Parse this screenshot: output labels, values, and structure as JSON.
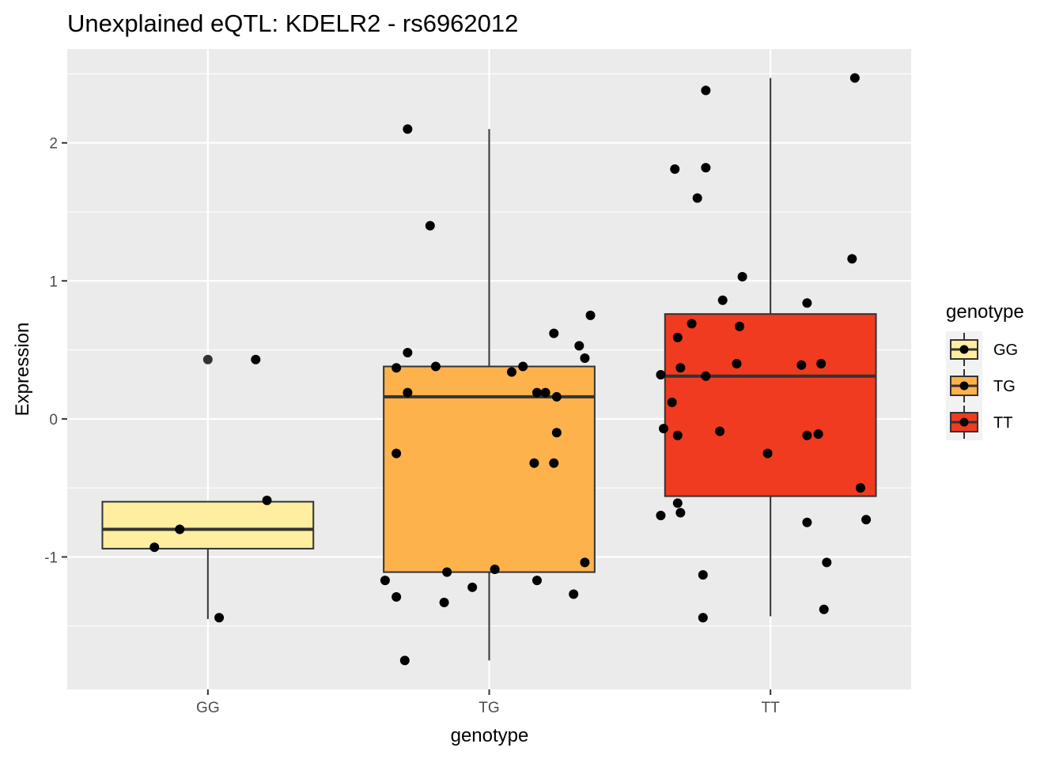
{
  "chart_data": {
    "type": "box",
    "title": "Unexplained eQTL: KDELR2 - rs6962012",
    "xlabel": "genotype",
    "ylabel": "Expression",
    "categories": [
      "GG",
      "TG",
      "TT"
    ],
    "ylim": [
      -1.96,
      2.68
    ],
    "yticks": [
      -1,
      0,
      1,
      2
    ],
    "ytick_labels": [
      "-1",
      "0",
      "1",
      "2"
    ],
    "grid": true,
    "legend": {
      "title": "genotype",
      "position": "right",
      "entries": [
        "GG",
        "TG",
        "TT"
      ]
    },
    "colors": {
      "GG": "#FFEDA0",
      "TG": "#FEB24C",
      "TT": "#F03B20",
      "panel": "#EBEBEB",
      "grid": "#FFFFFF",
      "point": "#000000"
    },
    "boxes": [
      {
        "genotype": "GG",
        "q1": -0.94,
        "median": -0.8,
        "q3": -0.6,
        "whisker_low": -1.45,
        "whisker_high": -0.6
      },
      {
        "genotype": "TG",
        "q1": -1.11,
        "median": 0.16,
        "q3": 0.38,
        "whisker_low": -1.75,
        "whisker_high": 2.1
      },
      {
        "genotype": "TT",
        "q1": -0.56,
        "median": 0.31,
        "q3": 0.76,
        "whisker_low": -1.43,
        "whisker_high": 2.47
      }
    ],
    "outliers": [
      {
        "genotype": "GG",
        "x_offset": 0.0,
        "y": 0.43
      }
    ],
    "points": [
      {
        "genotype": "GG",
        "x_offset": 0.17,
        "y": 0.43
      },
      {
        "genotype": "GG",
        "x_offset": 0.21,
        "y": -0.59
      },
      {
        "genotype": "GG",
        "x_offset": -0.1,
        "y": -0.8
      },
      {
        "genotype": "GG",
        "x_offset": -0.19,
        "y": -0.93
      },
      {
        "genotype": "GG",
        "x_offset": 0.04,
        "y": -1.44
      },
      {
        "genotype": "TG",
        "x_offset": -0.33,
        "y": 0.37
      },
      {
        "genotype": "TG",
        "x_offset": -0.29,
        "y": 0.19
      },
      {
        "genotype": "TG",
        "x_offset": -0.33,
        "y": -1.29
      },
      {
        "genotype": "TG",
        "x_offset": -0.37,
        "y": -1.17
      },
      {
        "genotype": "TG",
        "x_offset": -0.33,
        "y": -0.25
      },
      {
        "genotype": "TG",
        "x_offset": -0.29,
        "y": 2.1
      },
      {
        "genotype": "TG",
        "x_offset": -0.29,
        "y": 0.48
      },
      {
        "genotype": "TG",
        "x_offset": -0.21,
        "y": 1.4
      },
      {
        "genotype": "TG",
        "x_offset": -0.19,
        "y": 0.38
      },
      {
        "genotype": "TG",
        "x_offset": -0.16,
        "y": -1.33
      },
      {
        "genotype": "TG",
        "x_offset": -0.15,
        "y": -1.11
      },
      {
        "genotype": "TG",
        "x_offset": -0.3,
        "y": -1.75
      },
      {
        "genotype": "TG",
        "x_offset": -0.06,
        "y": -1.22
      },
      {
        "genotype": "TG",
        "x_offset": 0.02,
        "y": -1.09
      },
      {
        "genotype": "TG",
        "x_offset": 0.08,
        "y": 0.34
      },
      {
        "genotype": "TG",
        "x_offset": 0.12,
        "y": 0.38
      },
      {
        "genotype": "TG",
        "x_offset": 0.16,
        "y": -0.32
      },
      {
        "genotype": "TG",
        "x_offset": 0.17,
        "y": 0.19
      },
      {
        "genotype": "TG",
        "x_offset": 0.2,
        "y": 0.19
      },
      {
        "genotype": "TG",
        "x_offset": 0.17,
        "y": -1.17
      },
      {
        "genotype": "TG",
        "x_offset": 0.23,
        "y": 0.62
      },
      {
        "genotype": "TG",
        "x_offset": 0.24,
        "y": 0.16
      },
      {
        "genotype": "TG",
        "x_offset": 0.24,
        "y": -0.1
      },
      {
        "genotype": "TG",
        "x_offset": 0.23,
        "y": -0.32
      },
      {
        "genotype": "TG",
        "x_offset": 0.3,
        "y": -1.27
      },
      {
        "genotype": "TG",
        "x_offset": 0.32,
        "y": 0.53
      },
      {
        "genotype": "TG",
        "x_offset": 0.34,
        "y": 0.44
      },
      {
        "genotype": "TG",
        "x_offset": 0.34,
        "y": -1.04
      },
      {
        "genotype": "TG",
        "x_offset": 0.36,
        "y": 0.75
      },
      {
        "genotype": "TT",
        "x_offset": 0.3,
        "y": 2.47
      },
      {
        "genotype": "TT",
        "x_offset": -0.23,
        "y": 2.38
      },
      {
        "genotype": "TT",
        "x_offset": -0.34,
        "y": 1.81
      },
      {
        "genotype": "TT",
        "x_offset": -0.23,
        "y": 1.82
      },
      {
        "genotype": "TT",
        "x_offset": -0.26,
        "y": 1.6
      },
      {
        "genotype": "TT",
        "x_offset": 0.29,
        "y": 1.16
      },
      {
        "genotype": "TT",
        "x_offset": -0.1,
        "y": 1.03
      },
      {
        "genotype": "TT",
        "x_offset": -0.17,
        "y": 0.86
      },
      {
        "genotype": "TT",
        "x_offset": 0.13,
        "y": 0.84
      },
      {
        "genotype": "TT",
        "x_offset": -0.28,
        "y": 0.69
      },
      {
        "genotype": "TT",
        "x_offset": -0.11,
        "y": 0.67
      },
      {
        "genotype": "TT",
        "x_offset": -0.33,
        "y": 0.59
      },
      {
        "genotype": "TT",
        "x_offset": -0.12,
        "y": 0.4
      },
      {
        "genotype": "TT",
        "x_offset": 0.11,
        "y": 0.39
      },
      {
        "genotype": "TT",
        "x_offset": 0.18,
        "y": 0.4
      },
      {
        "genotype": "TT",
        "x_offset": -0.32,
        "y": 0.37
      },
      {
        "genotype": "TT",
        "x_offset": -0.39,
        "y": 0.32
      },
      {
        "genotype": "TT",
        "x_offset": -0.23,
        "y": 0.31
      },
      {
        "genotype": "TT",
        "x_offset": -0.35,
        "y": 0.12
      },
      {
        "genotype": "TT",
        "x_offset": -0.38,
        "y": -0.07
      },
      {
        "genotype": "TT",
        "x_offset": -0.33,
        "y": -0.12
      },
      {
        "genotype": "TT",
        "x_offset": -0.18,
        "y": -0.09
      },
      {
        "genotype": "TT",
        "x_offset": 0.13,
        "y": -0.12
      },
      {
        "genotype": "TT",
        "x_offset": 0.17,
        "y": -0.11
      },
      {
        "genotype": "TT",
        "x_offset": -0.01,
        "y": -0.25
      },
      {
        "genotype": "TT",
        "x_offset": 0.32,
        "y": -0.5
      },
      {
        "genotype": "TT",
        "x_offset": -0.33,
        "y": -0.61
      },
      {
        "genotype": "TT",
        "x_offset": -0.32,
        "y": -0.68
      },
      {
        "genotype": "TT",
        "x_offset": -0.39,
        "y": -0.7
      },
      {
        "genotype": "TT",
        "x_offset": 0.13,
        "y": -0.75
      },
      {
        "genotype": "TT",
        "x_offset": 0.34,
        "y": -0.73
      },
      {
        "genotype": "TT",
        "x_offset": 0.2,
        "y": -1.04
      },
      {
        "genotype": "TT",
        "x_offset": -0.24,
        "y": -1.13
      },
      {
        "genotype": "TT",
        "x_offset": -0.24,
        "y": -1.44
      },
      {
        "genotype": "TT",
        "x_offset": 0.19,
        "y": -1.38
      }
    ]
  }
}
